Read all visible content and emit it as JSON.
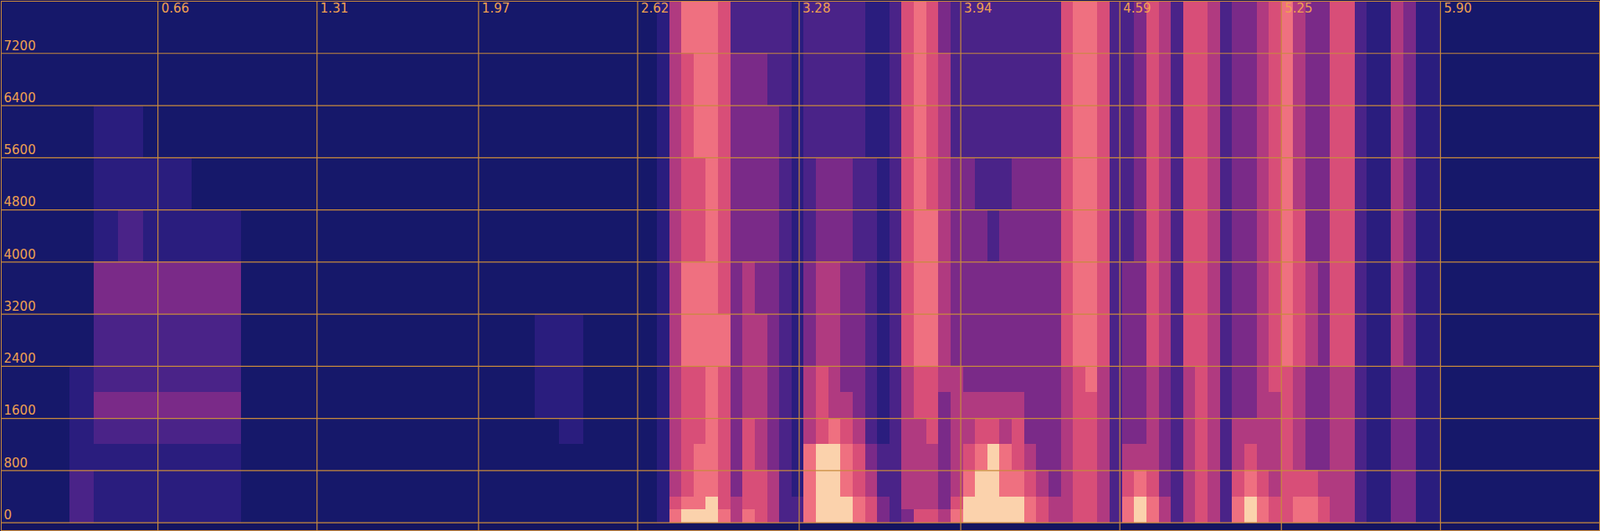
{
  "chart_data": {
    "type": "heatmap",
    "xlim": [
      0.02,
      6.55
    ],
    "ylim": [
      -120,
      8000
    ],
    "xticks": [
      0.66,
      1.31,
      1.97,
      2.62,
      3.28,
      3.94,
      4.59,
      5.25,
      {
        "value": 5.9,
        "label": "5.90"
      }
    ],
    "yticks": [
      0,
      800,
      1600,
      2400,
      3200,
      4000,
      4800,
      5600,
      6400,
      7200
    ],
    "grid": true,
    "zlim": [
      0,
      9
    ],
    "x_edges": [
      0,
      0.1,
      0.2,
      0.3,
      0.4,
      0.5,
      0.6,
      0.7,
      0.8,
      0.9,
      1.0,
      1.1,
      1.2,
      1.3,
      1.4,
      1.5,
      1.6,
      1.7,
      1.8,
      1.9,
      2.0,
      2.1,
      2.2,
      2.3,
      2.4,
      2.5,
      2.6,
      2.65,
      2.7,
      2.75,
      2.8,
      2.85,
      2.9,
      2.95,
      3.0,
      3.05,
      3.1,
      3.15,
      3.2,
      3.25,
      3.3,
      3.35,
      3.4,
      3.45,
      3.5,
      3.55,
      3.6,
      3.65,
      3.7,
      3.75,
      3.8,
      3.85,
      3.9,
      3.95,
      4.0,
      4.05,
      4.1,
      4.15,
      4.2,
      4.25,
      4.3,
      4.35,
      4.4,
      4.45,
      4.5,
      4.55,
      4.6,
      4.65,
      4.7,
      4.75,
      4.8,
      4.85,
      4.9,
      4.95,
      5.0,
      5.05,
      5.1,
      5.15,
      5.2,
      5.25,
      5.3,
      5.35,
      5.4,
      5.45,
      5.5,
      5.55,
      5.6,
      5.65,
      5.7,
      5.75,
      5.8,
      5.85,
      5.9,
      6.0,
      6.1,
      6.2,
      6.3,
      6.4,
      6.5,
      6.6
    ],
    "y_edges": [
      0,
      200,
      400,
      800,
      1200,
      1600,
      2000,
      2400,
      3200,
      4000,
      4800,
      5600,
      6400,
      7200,
      8000
    ],
    "values": [
      [
        1,
        1,
        1,
        1,
        1,
        1,
        1,
        1,
        1,
        1,
        1,
        1,
        1,
        1
      ],
      [
        1,
        1,
        1,
        1,
        1,
        1,
        1,
        1,
        1,
        1,
        1,
        1,
        1,
        1
      ],
      [
        1,
        1,
        1,
        1,
        1,
        1,
        1,
        1,
        1,
        1,
        1,
        1,
        1,
        1
      ],
      [
        3,
        3,
        3,
        2,
        2,
        2,
        2,
        1,
        1,
        1,
        1,
        1,
        1,
        1
      ],
      [
        2,
        2,
        2,
        2,
        3,
        4,
        3,
        3,
        4,
        2,
        2,
        2,
        1,
        1
      ],
      [
        2,
        2,
        2,
        2,
        3,
        4,
        3,
        3,
        4,
        3,
        2,
        2,
        1,
        1
      ],
      [
        2,
        2,
        2,
        2,
        3,
        4,
        3,
        3,
        4,
        2,
        2,
        1,
        1,
        1
      ],
      [
        2,
        2,
        2,
        2,
        3,
        4,
        3,
        3,
        4,
        2,
        2,
        1,
        1,
        1
      ],
      [
        2,
        2,
        2,
        2,
        3,
        4,
        3,
        3,
        4,
        2,
        1,
        1,
        1,
        1
      ],
      [
        2,
        2,
        2,
        2,
        3,
        4,
        3,
        3,
        4,
        2,
        1,
        1,
        1,
        1
      ],
      [
        1,
        1,
        1,
        1,
        1,
        1,
        1,
        1,
        1,
        1,
        1,
        1,
        1,
        1
      ],
      [
        1,
        1,
        1,
        1,
        1,
        1,
        1,
        1,
        1,
        1,
        1,
        1,
        1,
        1
      ],
      [
        1,
        1,
        1,
        1,
        1,
        1,
        1,
        1,
        1,
        1,
        1,
        1,
        1,
        1
      ],
      [
        1,
        1,
        1,
        1,
        1,
        1,
        1,
        1,
        1,
        1,
        1,
        1,
        1,
        1
      ],
      [
        1,
        1,
        1,
        1,
        1,
        1,
        1,
        1,
        1,
        1,
        1,
        1,
        1,
        1
      ],
      [
        1,
        1,
        1,
        1,
        1,
        1,
        1,
        1,
        1,
        1,
        1,
        1,
        1,
        1
      ],
      [
        1,
        1,
        1,
        1,
        1,
        1,
        1,
        1,
        1,
        1,
        1,
        1,
        1,
        1
      ],
      [
        1,
        1,
        1,
        1,
        1,
        1,
        1,
        1,
        1,
        1,
        1,
        1,
        1,
        1
      ],
      [
        1,
        1,
        1,
        1,
        1,
        1,
        1,
        1,
        1,
        1,
        1,
        1,
        1,
        1
      ],
      [
        1,
        1,
        1,
        1,
        1,
        1,
        1,
        1,
        1,
        1,
        1,
        1,
        1,
        1
      ],
      [
        1,
        1,
        1,
        1,
        1,
        1,
        1,
        1,
        1,
        1,
        1,
        1,
        1,
        1
      ],
      [
        1,
        1,
        1,
        1,
        1,
        1,
        1,
        1,
        1,
        1,
        1,
        1,
        1,
        1
      ],
      [
        1,
        1,
        1,
        1,
        1,
        2,
        2,
        2,
        1,
        1,
        1,
        1,
        1,
        1
      ],
      [
        1,
        1,
        1,
        1,
        2,
        2,
        2,
        2,
        1,
        1,
        1,
        1,
        1,
        1
      ],
      [
        1,
        1,
        1,
        1,
        1,
        1,
        1,
        1,
        1,
        1,
        1,
        1,
        1,
        1
      ],
      [
        1,
        1,
        1,
        1,
        1,
        1,
        1,
        1,
        1,
        1,
        1,
        1,
        1,
        1
      ],
      [
        1,
        1,
        1,
        1,
        1,
        1,
        1,
        1,
        1,
        1,
        1,
        1,
        1,
        1
      ],
      [
        1,
        1,
        1,
        1,
        1,
        1,
        1,
        1,
        1,
        1,
        1,
        1,
        1,
        1
      ],
      [
        2,
        2,
        2,
        2,
        2,
        2,
        2,
        2,
        2,
        2,
        2,
        2,
        2,
        2
      ],
      [
        7,
        6,
        5,
        5,
        5,
        5,
        5,
        5,
        5,
        5,
        5,
        5,
        5,
        5
      ],
      [
        8,
        7,
        6,
        6,
        6,
        6,
        6,
        7,
        7,
        6,
        6,
        6,
        6,
        7
      ],
      [
        8,
        7,
        7,
        7,
        6,
        6,
        6,
        7,
        7,
        6,
        6,
        7,
        7,
        7
      ],
      [
        8,
        8,
        7,
        7,
        7,
        7,
        7,
        7,
        7,
        7,
        7,
        7,
        7,
        7
      ],
      [
        7,
        6,
        6,
        6,
        6,
        6,
        6,
        7,
        6,
        6,
        6,
        6,
        6,
        6
      ],
      [
        5,
        5,
        4,
        4,
        4,
        4,
        4,
        4,
        4,
        4,
        4,
        4,
        4,
        3
      ],
      [
        7,
        6,
        6,
        6,
        6,
        5,
        5,
        5,
        5,
        4,
        4,
        4,
        4,
        3
      ],
      [
        6,
        6,
        6,
        5,
        5,
        5,
        5,
        5,
        4,
        4,
        4,
        4,
        4,
        3
      ],
      [
        5,
        5,
        5,
        4,
        4,
        4,
        4,
        4,
        4,
        4,
        4,
        4,
        3,
        3
      ],
      [
        3,
        3,
        3,
        3,
        3,
        3,
        3,
        3,
        3,
        3,
        3,
        3,
        3,
        3
      ],
      [
        3,
        3,
        2,
        2,
        2,
        2,
        2,
        2,
        2,
        2,
        2,
        2,
        2,
        2
      ],
      [
        7,
        7,
        7,
        7,
        5,
        5,
        5,
        4,
        4,
        3,
        3,
        3,
        3,
        3
      ],
      [
        8,
        8,
        8,
        8,
        6,
        6,
        6,
        5,
        5,
        4,
        4,
        3,
        3,
        3
      ],
      [
        8,
        8,
        8,
        8,
        7,
        5,
        5,
        5,
        5,
        4,
        4,
        3,
        3,
        3
      ],
      [
        8,
        8,
        7,
        7,
        6,
        5,
        4,
        4,
        4,
        4,
        4,
        3,
        3,
        3
      ],
      [
        7,
        7,
        6,
        6,
        5,
        4,
        4,
        4,
        4,
        3,
        3,
        3,
        3,
        3
      ],
      [
        6,
        6,
        5,
        4,
        3,
        3,
        3,
        3,
        3,
        3,
        3,
        2,
        2,
        2
      ],
      [
        4,
        4,
        3,
        3,
        2,
        2,
        2,
        2,
        2,
        2,
        2,
        2,
        2,
        2
      ],
      [
        3,
        3,
        3,
        3,
        3,
        3,
        3,
        3,
        3,
        3,
        3,
        3,
        3,
        3
      ],
      [
        4,
        5,
        5,
        5,
        5,
        5,
        5,
        6,
        6,
        6,
        6,
        6,
        6,
        6
      ],
      [
        6,
        5,
        5,
        5,
        5,
        6,
        6,
        7,
        7,
        7,
        7,
        7,
        7,
        7
      ],
      [
        6,
        5,
        5,
        5,
        6,
        6,
        6,
        7,
        7,
        7,
        6,
        6,
        6,
        6
      ],
      [
        5,
        4,
        4,
        4,
        4,
        4,
        5,
        5,
        5,
        5,
        5,
        5,
        5,
        4
      ],
      [
        7,
        6,
        5,
        5,
        5,
        5,
        5,
        4,
        4,
        4,
        4,
        3,
        3,
        3
      ],
      [
        8,
        8,
        7,
        6,
        5,
        5,
        4,
        4,
        4,
        4,
        4,
        3,
        3,
        3
      ],
      [
        8,
        8,
        8,
        7,
        6,
        5,
        4,
        4,
        4,
        4,
        3,
        3,
        3,
        3
      ],
      [
        8,
        8,
        8,
        8,
        6,
        5,
        4,
        4,
        4,
        3,
        3,
        3,
        3,
        3
      ],
      [
        8,
        8,
        7,
        7,
        5,
        5,
        4,
        4,
        4,
        4,
        3,
        3,
        3,
        3
      ],
      [
        8,
        8,
        7,
        6,
        6,
        5,
        4,
        4,
        4,
        4,
        4,
        3,
        3,
        3
      ],
      [
        7,
        7,
        6,
        5,
        4,
        4,
        4,
        4,
        4,
        4,
        4,
        3,
        3,
        3
      ],
      [
        6,
        6,
        5,
        4,
        4,
        4,
        4,
        4,
        4,
        4,
        4,
        3,
        3,
        3
      ],
      [
        5,
        5,
        4,
        4,
        4,
        4,
        4,
        4,
        4,
        4,
        4,
        3,
        3,
        3
      ],
      [
        5,
        5,
        5,
        5,
        5,
        5,
        5,
        6,
        6,
        6,
        6,
        6,
        6,
        6
      ],
      [
        6,
        6,
        6,
        6,
        6,
        6,
        6,
        7,
        7,
        7,
        7,
        7,
        7,
        7
      ],
      [
        6,
        6,
        6,
        6,
        6,
        6,
        7,
        7,
        7,
        7,
        7,
        7,
        7,
        7
      ],
      [
        5,
        5,
        5,
        5,
        5,
        5,
        5,
        6,
        6,
        6,
        6,
        6,
        6,
        6
      ],
      [
        3,
        3,
        3,
        3,
        3,
        3,
        3,
        3,
        3,
        3,
        3,
        3,
        3,
        3
      ],
      [
        7,
        7,
        6,
        5,
        4,
        4,
        4,
        4,
        4,
        3,
        3,
        3,
        3,
        3
      ],
      [
        8,
        8,
        7,
        5,
        4,
        4,
        4,
        4,
        4,
        4,
        4,
        4,
        4,
        4
      ],
      [
        7,
        7,
        6,
        5,
        5,
        5,
        5,
        6,
        6,
        6,
        6,
        6,
        6,
        6
      ],
      [
        5,
        5,
        4,
        4,
        4,
        4,
        4,
        5,
        5,
        5,
        5,
        5,
        5,
        5
      ],
      [
        3,
        3,
        3,
        3,
        3,
        3,
        3,
        3,
        3,
        3,
        3,
        3,
        3,
        3
      ],
      [
        5,
        5,
        5,
        5,
        5,
        5,
        5,
        6,
        6,
        6,
        6,
        6,
        6,
        6
      ],
      [
        6,
        6,
        6,
        6,
        6,
        6,
        6,
        6,
        6,
        6,
        6,
        6,
        6,
        6
      ],
      [
        5,
        5,
        5,
        5,
        5,
        5,
        5,
        5,
        5,
        5,
        5,
        5,
        5,
        5
      ],
      [
        3,
        3,
        3,
        3,
        3,
        3,
        3,
        3,
        3,
        3,
        3,
        3,
        3,
        3
      ],
      [
        7,
        7,
        6,
        5,
        5,
        4,
        4,
        4,
        4,
        4,
        4,
        4,
        4,
        4
      ],
      [
        8,
        8,
        7,
        6,
        5,
        4,
        4,
        4,
        4,
        4,
        4,
        4,
        4,
        4
      ],
      [
        7,
        7,
        6,
        5,
        5,
        5,
        5,
        5,
        5,
        5,
        5,
        5,
        5,
        5
      ],
      [
        6,
        6,
        5,
        5,
        5,
        5,
        6,
        6,
        6,
        6,
        6,
        6,
        6,
        6
      ],
      [
        6,
        6,
        6,
        6,
        6,
        6,
        6,
        7,
        7,
        7,
        7,
        7,
        7,
        7
      ],
      [
        7,
        7,
        6,
        5,
        5,
        5,
        5,
        6,
        6,
        6,
        5,
        5,
        5,
        5
      ],
      [
        7,
        7,
        6,
        4,
        4,
        4,
        4,
        5,
        5,
        4,
        4,
        4,
        4,
        4
      ],
      [
        6,
        6,
        5,
        4,
        4,
        4,
        4,
        4,
        4,
        4,
        4,
        4,
        4,
        4
      ],
      [
        5,
        5,
        5,
        5,
        5,
        5,
        5,
        6,
        6,
        6,
        6,
        6,
        6,
        6
      ],
      [
        5,
        5,
        5,
        5,
        5,
        5,
        5,
        6,
        6,
        6,
        6,
        6,
        6,
        6
      ],
      [
        3,
        3,
        3,
        3,
        3,
        3,
        3,
        3,
        3,
        3,
        3,
        3,
        3,
        3
      ],
      [
        2,
        2,
        2,
        2,
        2,
        2,
        2,
        2,
        2,
        2,
        2,
        2,
        2,
        2
      ],
      [
        2,
        2,
        2,
        2,
        2,
        2,
        2,
        2,
        2,
        2,
        2,
        2,
        2,
        2
      ],
      [
        4,
        4,
        4,
        4,
        4,
        4,
        4,
        5,
        5,
        5,
        5,
        5,
        5,
        5
      ],
      [
        4,
        4,
        4,
        4,
        4,
        4,
        4,
        4,
        4,
        4,
        4,
        4,
        4,
        4
      ],
      [
        2,
        2,
        2,
        2,
        2,
        2,
        2,
        2,
        2,
        2,
        2,
        2,
        2,
        2
      ],
      [
        2,
        2,
        2,
        2,
        2,
        2,
        2,
        2,
        2,
        2,
        2,
        2,
        2,
        2
      ],
      [
        1,
        1,
        1,
        1,
        1,
        1,
        1,
        1,
        1,
        1,
        1,
        1,
        1,
        1
      ],
      [
        1,
        1,
        1,
        1,
        1,
        1,
        1,
        1,
        1,
        1,
        1,
        1,
        1,
        1
      ],
      [
        1,
        1,
        1,
        1,
        1,
        1,
        1,
        1,
        1,
        1,
        1,
        1,
        1,
        1
      ],
      [
        1,
        1,
        1,
        1,
        1,
        1,
        1,
        1,
        1,
        1,
        1,
        1,
        1,
        1
      ],
      [
        1,
        1,
        1,
        1,
        1,
        1,
        1,
        1,
        1,
        1,
        1,
        1,
        1,
        1
      ],
      [
        1,
        1,
        1,
        1,
        1,
        1,
        1,
        1,
        1,
        1,
        1,
        1,
        1,
        1
      ],
      [
        1,
        1,
        1,
        1,
        1,
        1,
        1,
        1,
        1,
        1,
        1,
        1,
        1,
        1
      ]
    ]
  }
}
